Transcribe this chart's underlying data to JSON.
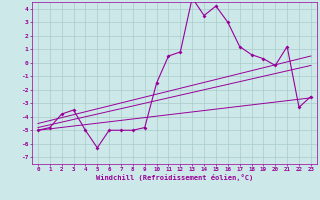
{
  "xlabel": "Windchill (Refroidissement éolien,°C)",
  "background_color": "#cce8e8",
  "grid_color": "#aacccc",
  "line_color": "#990099",
  "xlim": [
    -0.5,
    23.5
  ],
  "ylim": [
    -7.5,
    4.5
  ],
  "xticks": [
    0,
    1,
    2,
    3,
    4,
    5,
    6,
    7,
    8,
    9,
    10,
    11,
    12,
    13,
    14,
    15,
    16,
    17,
    18,
    19,
    20,
    21,
    22,
    23
  ],
  "yticks": [
    -7,
    -6,
    -5,
    -4,
    -3,
    -2,
    -1,
    0,
    1,
    2,
    3,
    4
  ],
  "main_x": [
    0,
    1,
    2,
    3,
    4,
    5,
    6,
    7,
    8,
    9,
    10,
    11,
    12,
    13,
    14,
    15,
    16,
    17,
    18,
    19,
    20,
    21,
    22,
    23
  ],
  "main_y": [
    -5.0,
    -4.8,
    -3.8,
    -3.5,
    -5.0,
    -6.3,
    -5.0,
    -5.0,
    -5.0,
    -4.8,
    -1.5,
    0.5,
    0.8,
    4.8,
    3.5,
    4.2,
    3.0,
    1.2,
    0.6,
    0.3,
    -0.2,
    1.2,
    -3.3,
    -2.5
  ],
  "line2_x": [
    0,
    23
  ],
  "line2_y": [
    -5.0,
    -2.6
  ],
  "line3_x": [
    0,
    23
  ],
  "line3_y": [
    -4.8,
    -0.2
  ],
  "line4_x": [
    0,
    23
  ],
  "line4_y": [
    -4.5,
    0.5
  ]
}
